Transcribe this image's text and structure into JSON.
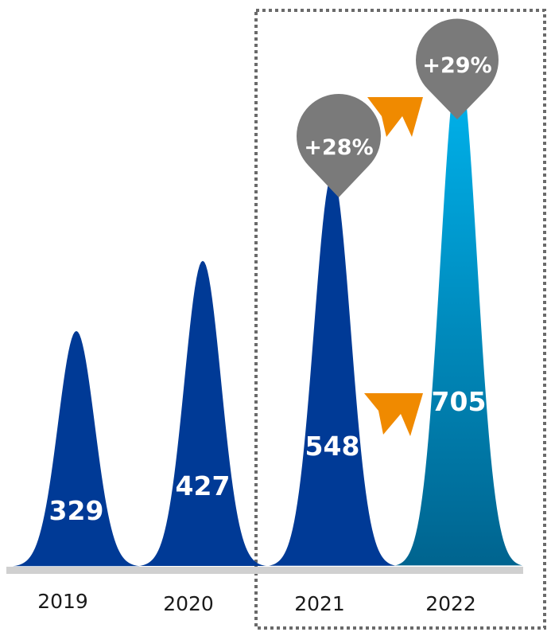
{
  "chart_data": {
    "type": "bar",
    "shape": "peak",
    "categories": [
      "2019",
      "2020",
      "2021",
      "2022"
    ],
    "values": [
      329,
      427,
      548,
      705
    ],
    "value_labels": [
      "329",
      "427",
      "548",
      "705"
    ],
    "ylim": [
      0,
      820
    ],
    "grid": false,
    "highlighted_categories": [
      "2021",
      "2022"
    ],
    "growth_annotations": [
      {
        "category": "2021",
        "label": "+28%"
      },
      {
        "category": "2022",
        "label": "+29%"
      }
    ],
    "colors": {
      "bar": "#003a96",
      "bar_highlight_top": "#00b6f0",
      "bar_highlight_bottom": "#00648f",
      "baseline": "#d0d0d0",
      "arrow": "#f08a00",
      "bubble": "#7a7a7a",
      "highlight_frame": "#6a6a6a"
    }
  }
}
